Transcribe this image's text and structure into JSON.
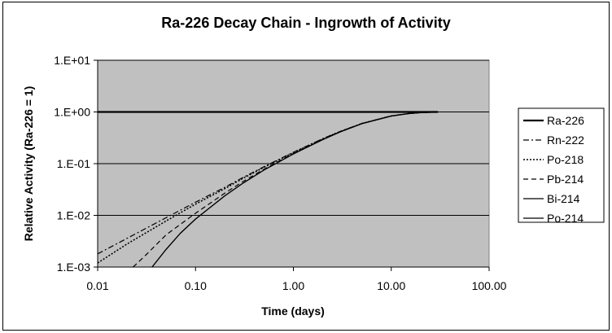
{
  "chart_data": {
    "type": "line",
    "title": "Ra-226 Decay Chain - Ingrowth of Activity",
    "xlabel": "Time (days)",
    "ylabel": "Relative Activity (Ra-226 = 1)",
    "x_scale": "log",
    "y_scale": "log",
    "xlim": [
      0.01,
      100
    ],
    "ylim": [
      0.001,
      10
    ],
    "x_ticks": [
      0.01,
      0.1,
      1,
      10,
      100
    ],
    "x_tick_labels": [
      "0.01",
      "0.10",
      "1.00",
      "10.00",
      "100.00"
    ],
    "y_ticks": [
      0.001,
      0.01,
      0.1,
      1,
      10
    ],
    "y_tick_labels": [
      "1.E-03",
      "1.E-02",
      "1.E-01",
      "1.E+00",
      "1.E+01"
    ],
    "grid": "horizontal major gridlines",
    "plot_background": "#c0c0c0",
    "legend_position": "right",
    "series": [
      {
        "name": "Ra-226",
        "style": "solid-thick",
        "x": [
          0.01,
          0.03,
          0.1,
          0.3,
          1,
          3,
          10,
          30
        ],
        "y": [
          1,
          1,
          1,
          1,
          1,
          1,
          1,
          1
        ]
      },
      {
        "name": "Rn-222",
        "style": "dashdot",
        "x": [
          0.01,
          0.02,
          0.05,
          0.1,
          0.2,
          0.3,
          0.5,
          1,
          2,
          3,
          5,
          10,
          15,
          20,
          30
        ],
        "y": [
          0.0018,
          0.0036,
          0.009,
          0.018,
          0.035,
          0.053,
          0.087,
          0.166,
          0.304,
          0.42,
          0.6,
          0.84,
          0.93,
          0.973,
          0.996
        ]
      },
      {
        "name": "Po-218",
        "style": "dotted",
        "x": [
          0.01,
          0.02,
          0.05,
          0.1,
          0.2,
          0.3,
          0.5,
          1,
          2,
          3,
          5,
          10,
          15,
          20,
          30
        ],
        "y": [
          0.0012,
          0.0028,
          0.0078,
          0.0165,
          0.033,
          0.051,
          0.085,
          0.164,
          0.302,
          0.418,
          0.598,
          0.838,
          0.93,
          0.972,
          0.996
        ]
      },
      {
        "name": "Pb-214",
        "style": "dashed",
        "x": [
          0.023,
          0.03,
          0.05,
          0.1,
          0.2,
          0.3,
          0.5,
          1,
          2,
          3,
          5,
          10,
          15,
          20,
          30
        ],
        "y": [
          0.001,
          0.0016,
          0.0042,
          0.011,
          0.027,
          0.044,
          0.078,
          0.157,
          0.296,
          0.413,
          0.595,
          0.836,
          0.929,
          0.972,
          0.996
        ]
      },
      {
        "name": "Bi-214",
        "style": "solid-thin",
        "x": [
          0.036,
          0.05,
          0.07,
          0.1,
          0.2,
          0.3,
          0.5,
          1,
          2,
          3,
          5,
          10,
          15,
          20,
          30
        ],
        "y": [
          0.001,
          0.0022,
          0.0045,
          0.0085,
          0.024,
          0.041,
          0.075,
          0.154,
          0.293,
          0.41,
          0.593,
          0.835,
          0.929,
          0.972,
          0.996
        ]
      },
      {
        "name": "Po-214",
        "style": "solid-thin",
        "x": [
          0.036,
          0.05,
          0.07,
          0.1,
          0.2,
          0.3,
          0.5,
          1,
          2,
          3,
          5,
          10,
          15,
          20,
          30
        ],
        "y": [
          0.001,
          0.0022,
          0.0045,
          0.0085,
          0.024,
          0.041,
          0.075,
          0.154,
          0.293,
          0.41,
          0.593,
          0.835,
          0.929,
          0.972,
          0.996
        ]
      }
    ]
  }
}
